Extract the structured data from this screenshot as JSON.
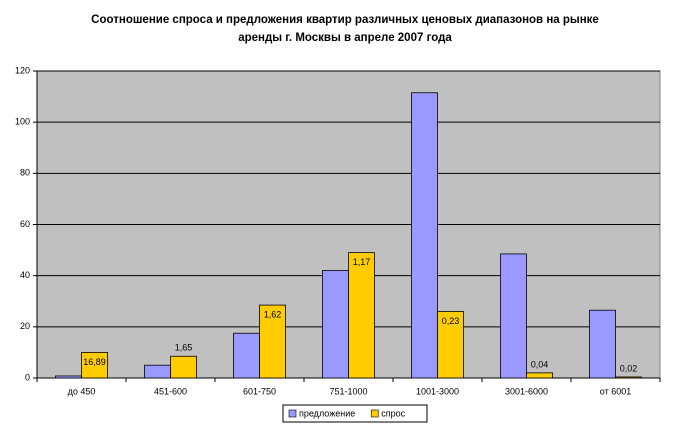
{
  "chart_data": {
    "type": "bar",
    "title": [
      "Соотношение спроса и предложения квартир различных ценовых диапазонов на рынке",
      "аренды г. Москвы в апреле 2007 года"
    ],
    "categories": [
      "до 450",
      "451-600",
      "601-750",
      "751-1000",
      "1001-3000",
      "3001-6000",
      "от 6001"
    ],
    "series": [
      {
        "name": "предложение",
        "color": "#9999ff",
        "values": [
          0.8,
          5,
          17.5,
          42,
          111.5,
          48.5,
          26.5
        ]
      },
      {
        "name": "спрос",
        "color": "#ffcc00",
        "values": [
          10,
          8.5,
          28.5,
          49,
          26,
          2,
          0.4
        ],
        "annotations": [
          "16,89",
          "1,65",
          "1,62",
          "1,17",
          "0,23",
          "0,04",
          "0,02"
        ]
      }
    ],
    "ylim": [
      0,
      120
    ],
    "yticks": [
      0,
      20,
      40,
      60,
      80,
      100,
      120
    ],
    "grid": true,
    "plot_background": "#c0c0c0",
    "legend": "bottom"
  }
}
